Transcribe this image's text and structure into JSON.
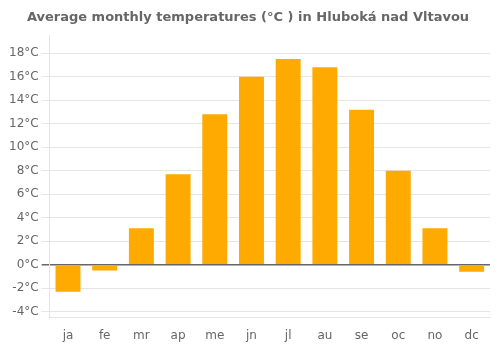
{
  "chart_data": {
    "type": "bar",
    "title": "Average monthly temperatures (°C ) in Hluboká nad Vltavou",
    "categories": [
      "ja",
      "fe",
      "mr",
      "ap",
      "me",
      "jn",
      "jl",
      "au",
      "se",
      "oc",
      "no",
      "dc"
    ],
    "values": [
      -2.3,
      -0.5,
      3.1,
      7.7,
      12.8,
      16.0,
      17.5,
      16.8,
      13.2,
      8.0,
      3.1,
      -0.6
    ],
    "color": "#FFAA00",
    "ylim": [
      -4.5,
      19.5
    ],
    "yticks": [
      {
        "value": -4,
        "label": "-4°C"
      },
      {
        "value": -2,
        "label": "-2°C"
      },
      {
        "value": 0,
        "label": "0°C"
      },
      {
        "value": 2,
        "label": "2°C"
      },
      {
        "value": 4,
        "label": "4°C"
      },
      {
        "value": 6,
        "label": "6°C"
      },
      {
        "value": 8,
        "label": "8°C"
      },
      {
        "value": 10,
        "label": "10°C"
      },
      {
        "value": 12,
        "label": "12°C"
      },
      {
        "value": 14,
        "label": "14°C"
      },
      {
        "value": 16,
        "label": "16°C"
      },
      {
        "value": 18,
        "label": "18°C"
      }
    ],
    "grid": true
  }
}
